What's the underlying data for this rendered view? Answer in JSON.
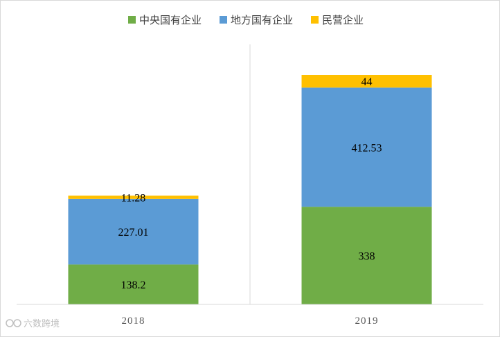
{
  "chart_data": {
    "type": "bar",
    "stacked": true,
    "categories": [
      "2018",
      "2019"
    ],
    "series": [
      {
        "name": "中央国有企业",
        "values": [
          138.2,
          338
        ],
        "color": "#70ad47"
      },
      {
        "name": "地方国有企业",
        "values": [
          227.01,
          412.53
        ],
        "color": "#5b9bd5"
      },
      {
        "name": "民营企业",
        "values": [
          11.28,
          44
        ],
        "color": "#ffc000"
      }
    ],
    "data_labels": [
      [
        "138.2",
        "338"
      ],
      [
        "227.01",
        "412.53"
      ],
      [
        "11.28",
        "44"
      ]
    ],
    "legend_position": "top",
    "grid": false,
    "category_separators": true,
    "ylim": [
      0,
      800
    ]
  },
  "watermark": {
    "text": "六数跨境",
    "icon": "watermark-logo-icon"
  }
}
